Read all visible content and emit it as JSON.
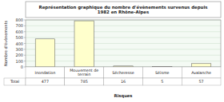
{
  "chart_data": {
    "type": "bar",
    "title": "Représentation graphique du nombre d'évènements survenus depuis\n1982 en Rhône-Alpes",
    "categories": [
      "Inondation",
      "Mouvement de\nterrain",
      "Sécheresse",
      "Séisme",
      "Avalanche"
    ],
    "values": [
      477,
      785,
      16,
      5,
      57
    ],
    "color": "#ffffcc",
    "ylabel": "Nombre d'évènements",
    "xlabel": "Risques",
    "table_row_label": "Total",
    "data_labels": true,
    "ylim": [
      0,
      800
    ],
    "yticks": [
      0,
      100,
      200,
      300,
      400,
      500,
      600,
      700,
      800
    ],
    "grid": true
  }
}
